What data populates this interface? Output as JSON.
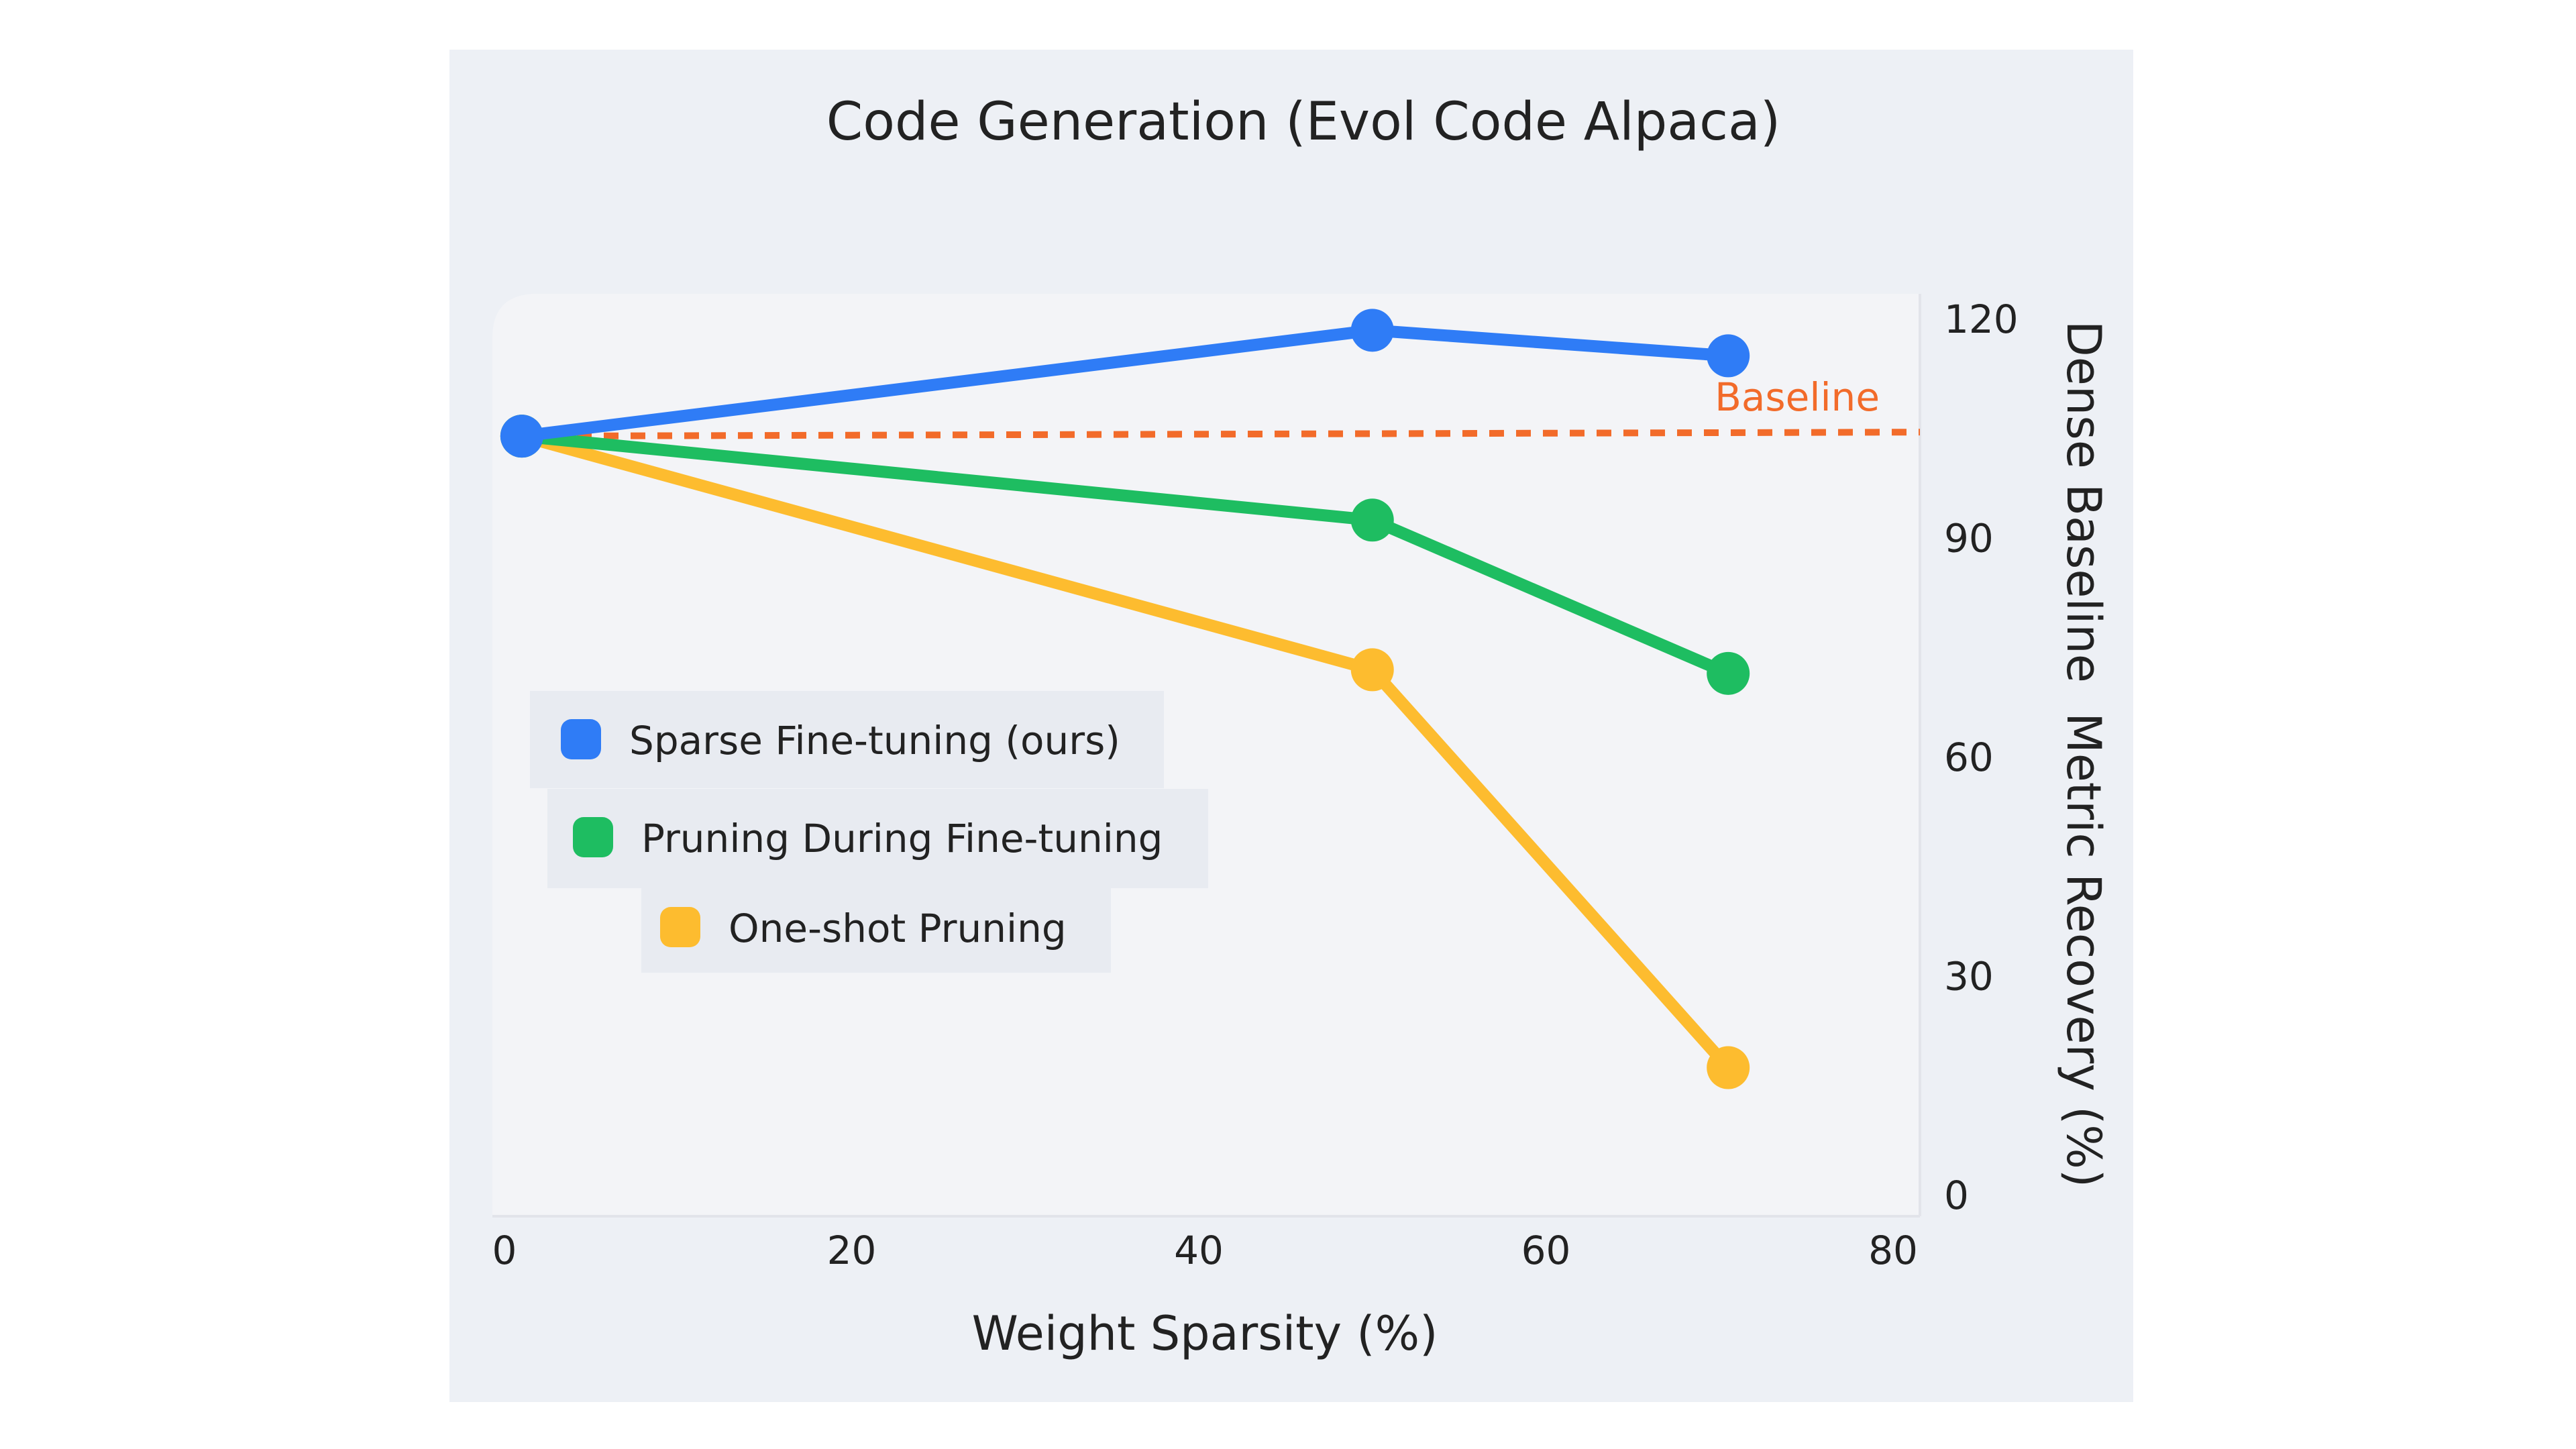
{
  "chart_data": {
    "type": "line",
    "title": "Code Generation (Evol Code Alpaca)",
    "xlabel": "Weight Sparsity (%)",
    "ylabel": "Dense Baseline  Metric Recovery (%)",
    "x_ticks": [
      "0",
      "20",
      "40",
      "60",
      "80"
    ],
    "y_ticks": [
      "0",
      "30",
      "60",
      "90",
      "120"
    ],
    "xlim": [
      0,
      80
    ],
    "ylim": [
      0,
      120
    ],
    "y_axis_side": "right",
    "legend_position": "center-left",
    "grid": false,
    "baseline": {
      "label": "Baseline",
      "value": 104,
      "color": "#f26b2a",
      "style": "dotted"
    },
    "series": [
      {
        "name": "Sparse Fine-tuning (ours)",
        "color": "#2f7cf6",
        "x": [
          1,
          50,
          70.5
        ],
        "y": [
          104,
          118.5,
          115
        ]
      },
      {
        "name": "Pruning During Fine-tuning",
        "color": "#1ebd61",
        "x": [
          1,
          50,
          70.5
        ],
        "y": [
          104,
          92.5,
          71.5
        ]
      },
      {
        "name": "One-shot Pruning",
        "color": "#fdbc2f",
        "x": [
          1,
          50,
          70.5
        ],
        "y": [
          104,
          72,
          17.5
        ]
      }
    ]
  }
}
